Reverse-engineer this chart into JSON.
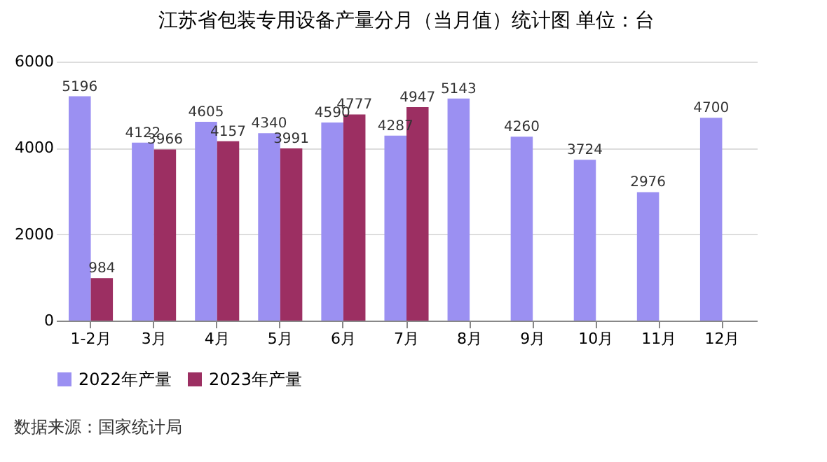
{
  "chart_data": {
    "type": "bar",
    "title": "江苏省包装专用设备产量分月（当月值）统计图 单位：台",
    "categories": [
      "1-2月",
      "3月",
      "4月",
      "5月",
      "6月",
      "7月",
      "8月",
      "9月",
      "10月",
      "11月",
      "12月"
    ],
    "series": [
      {
        "name": "2022年产量",
        "color": "#9b90f2",
        "values": [
          5196,
          4122,
          4605,
          4340,
          4590,
          4287,
          5143,
          4260,
          3724,
          2976,
          4700
        ]
      },
      {
        "name": "2023年产量",
        "color": "#9c2f62",
        "values": [
          984,
          3966,
          4157,
          3991,
          4777,
          4947,
          null,
          null,
          null,
          null,
          null
        ]
      }
    ],
    "ylim": [
      0,
      6000
    ],
    "yticks": [
      0,
      2000,
      4000,
      6000
    ],
    "grid": "y",
    "legend": "bottom",
    "data_labels": true,
    "annotations": [
      "数据来源：国家统计局"
    ]
  }
}
